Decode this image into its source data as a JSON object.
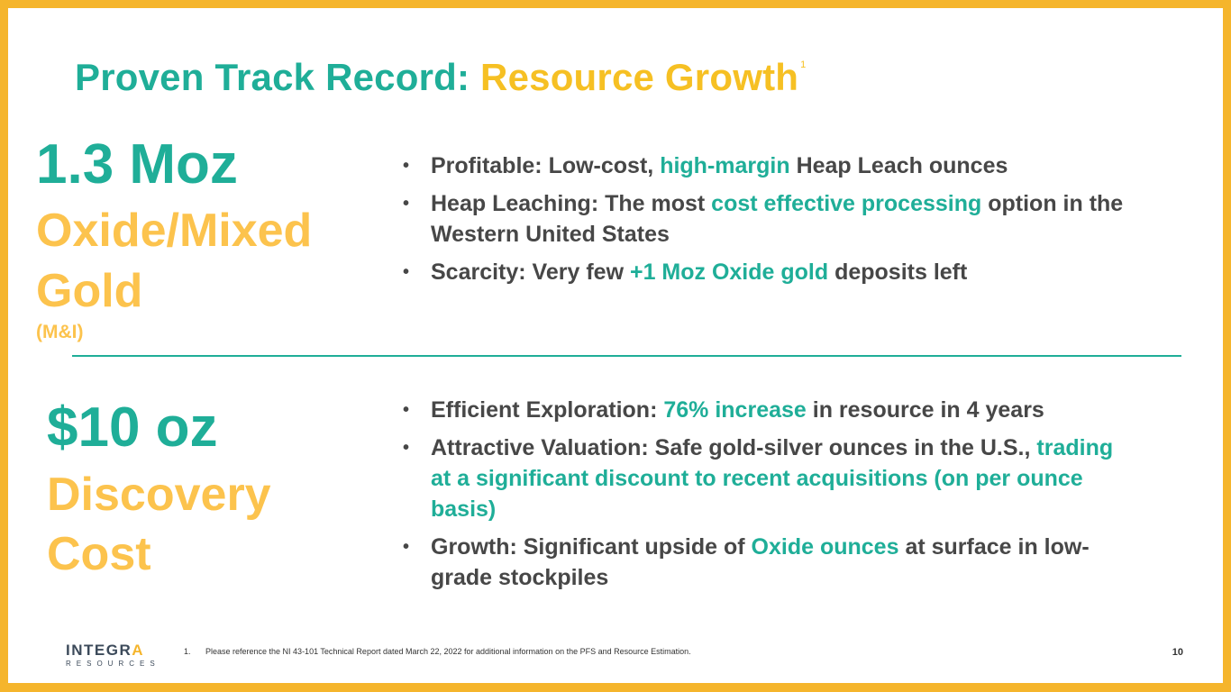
{
  "title": {
    "part1": "Proven Track Record: ",
    "part2": "Resource Growth",
    "superscript": "1"
  },
  "section1": {
    "metric": "1.3 Moz",
    "label_line1": "Oxide/Mixed",
    "label_line2": "Gold",
    "qualifier": "(M&I)",
    "bullets": [
      {
        "bullet": "•",
        "pre": "Profitable: Low-cost, ",
        "highlight": "high-margin",
        "post": " Heap Leach ounces"
      },
      {
        "bullet": "•",
        "pre": "Heap Leaching: The most ",
        "highlight": "cost effective processing",
        "post": " option in the Western United States"
      },
      {
        "bullet": "•",
        "pre": "Scarcity: Very few ",
        "highlight": "+1 Moz Oxide gold",
        "post": " deposits left"
      }
    ]
  },
  "section2": {
    "metric": "$10 oz",
    "label_line1": "Discovery",
    "label_line2": "Cost",
    "bullets": [
      {
        "bullet": "•",
        "pre": "Efficient Exploration: ",
        "highlight": "76% increase",
        "post": " in resource in 4 years"
      },
      {
        "bullet": "•",
        "pre": "Attractive Valuation: Safe gold-silver ounces in the U.S., ",
        "highlight": "trading at a significant discount to recent acquisitions (on per ounce basis)",
        "post": ""
      },
      {
        "bullet": "•",
        "pre": "Growth: Significant upside of ",
        "highlight": "Oxide ounces",
        "post": " at surface in low-grade stockpiles"
      }
    ]
  },
  "footer": {
    "logo_main": "INTEGR",
    "logo_accent": "A",
    "logo_sub": "RESOURCES",
    "footnote_number": "1.",
    "footnote_text": "Please reference the NI 43-101 Technical Report dated March 22, 2022 for additional information on the PFS and Resource Estimation.",
    "page_number": "10"
  },
  "colors": {
    "teal": "#1fae98",
    "gold": "#f6c023",
    "light_gold": "#fcc34d",
    "text_gray": "#474747",
    "frame": "#f5b52c"
  }
}
